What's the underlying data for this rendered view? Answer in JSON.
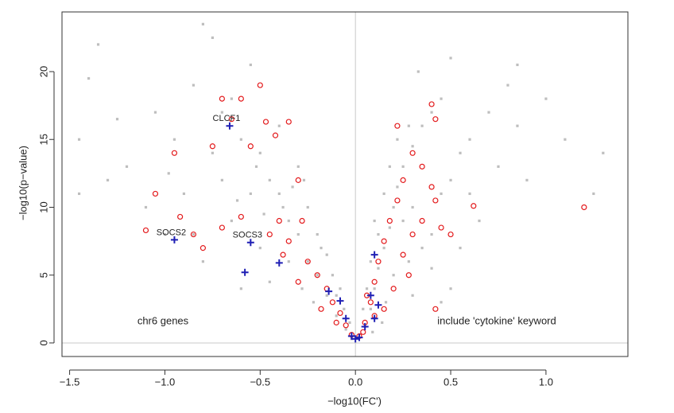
{
  "chart_data": {
    "type": "scatter",
    "x_label": "−log10(FC')",
    "y_label": "−log10(p−value)",
    "xlim": [
      -1.54,
      1.43
    ],
    "ylim": [
      -1,
      24.4
    ],
    "xticks": [
      {
        "value": -1.5,
        "label": "−1.5"
      },
      {
        "value": -1.0,
        "label": "−1.0"
      },
      {
        "value": -0.5,
        "label": "−0.5"
      },
      {
        "value": 0.0,
        "label": "0.0"
      },
      {
        "value": 0.5,
        "label": "0.5"
      },
      {
        "value": 1.0,
        "label": "1.0"
      }
    ],
    "yticks": [
      0,
      5,
      10,
      15,
      20
    ],
    "reference_lines": {
      "x": 0,
      "y": 0,
      "color": "#c8c8c8"
    },
    "annotations": [
      {
        "text": "chr6 genes",
        "color": "#e31a1c"
      },
      {
        "text": "include 'cytokine' keyword",
        "color": "#1f1fb4"
      }
    ],
    "series": [
      {
        "color": "#bebebe",
        "marker": "square",
        "x": [
          -1.45,
          -1.35,
          -1.4,
          -1.25,
          -1.45,
          -1.2,
          -1.05,
          -0.85,
          -0.8,
          -0.75,
          -0.55,
          -0.6,
          -0.65,
          -0.5,
          -0.45,
          -0.4,
          -0.35,
          -0.3,
          -0.25,
          -0.2,
          -0.15,
          -0.1,
          -0.05,
          -0.02,
          -0.7,
          -0.9,
          -1.0,
          -0.8,
          -0.6,
          -0.5,
          -0.3,
          -0.25,
          -0.2,
          -0.18,
          -0.12,
          -0.08,
          -0.35,
          -0.28,
          -0.15,
          -0.4,
          -0.55,
          -0.65,
          -0.75,
          -0.95,
          -1.1,
          -0.85,
          -0.45,
          -0.22,
          -0.1,
          -0.06,
          -0.03,
          -0.33,
          -0.27,
          -0.38,
          -0.48,
          -0.52,
          -0.7,
          -0.62,
          -1.3,
          -0.98,
          0.02,
          0.05,
          0.08,
          0.1,
          0.12,
          0.15,
          0.18,
          0.2,
          0.22,
          0.25,
          0.3,
          0.35,
          0.4,
          0.45,
          0.12,
          0.15,
          0.18,
          0.1,
          0.08,
          0.06,
          0.25,
          0.3,
          0.35,
          0.4,
          0.28,
          0.2,
          0.16,
          0.45,
          0.5,
          0.55,
          0.6,
          0.7,
          0.8,
          0.75,
          0.85,
          0.9,
          1.1,
          1.3,
          1.25,
          1.0,
          0.65,
          0.55,
          0.5,
          0.45,
          0.3,
          0.33,
          0.28,
          0.22,
          0.5,
          0.85,
          0.6,
          0.4,
          0.14,
          0.04,
          0.09
        ],
        "y": [
          11,
          22,
          19.5,
          16.5,
          15,
          13,
          17,
          19,
          23.5,
          22.5,
          20.5,
          15,
          18,
          14,
          12,
          11,
          9,
          8,
          6,
          5,
          3.5,
          2,
          1,
          0.3,
          12,
          11,
          8,
          6,
          4,
          7,
          13,
          10,
          8,
          7,
          5,
          4,
          6,
          4,
          6.5,
          16,
          11,
          9,
          14,
          15,
          10,
          8,
          4.5,
          3,
          3.5,
          2.5,
          1.5,
          11.5,
          12,
          10,
          9.5,
          13,
          17,
          10.5,
          12,
          12.5,
          0.4,
          1.2,
          2.5,
          4,
          5.5,
          7,
          8.5,
          10,
          11.5,
          13,
          14.5,
          16,
          17,
          18,
          8,
          11,
          13,
          9,
          6,
          4,
          9,
          10,
          7,
          8,
          6,
          5,
          3,
          11,
          12,
          14,
          15,
          17,
          19,
          13,
          16,
          12,
          15,
          14,
          11,
          18,
          9,
          7,
          4,
          3,
          3.5,
          20,
          16,
          15,
          21,
          20.5,
          11,
          5.5,
          1.5,
          2.5,
          0.8
        ]
      },
      {
        "color": "#e31a1c",
        "marker": "circle",
        "x": [
          -0.95,
          -1.05,
          -1.1,
          -0.92,
          -0.75,
          -0.7,
          -0.6,
          -0.5,
          -0.55,
          -0.47,
          -0.42,
          -0.35,
          -0.3,
          -0.4,
          -0.45,
          -0.35,
          -0.28,
          -0.25,
          -0.2,
          -0.15,
          -0.12,
          -0.08,
          -0.05,
          -0.02,
          -0.1,
          -0.18,
          -0.3,
          -0.38,
          -0.6,
          -0.7,
          -0.8,
          -0.85,
          -0.65,
          0.02,
          0.05,
          0.08,
          0.1,
          0.12,
          0.15,
          0.18,
          0.22,
          0.25,
          0.3,
          0.4,
          0.42,
          0.22,
          0.35,
          0.4,
          0.42,
          0.35,
          0.45,
          0.3,
          0.25,
          0.2,
          0.15,
          0.62,
          1.2,
          0.42,
          0.5,
          0.28,
          0.06,
          0.1,
          0.04
        ],
        "y": [
          14,
          11,
          8.3,
          9.3,
          14.5,
          18,
          18,
          19,
          14.5,
          16.3,
          15.3,
          16.3,
          12,
          9,
          8,
          7.5,
          9,
          6,
          5,
          4,
          3,
          2.2,
          1.3,
          0.6,
          1.5,
          2.5,
          4.5,
          6.5,
          9.3,
          8.5,
          7,
          8,
          16.5,
          0.5,
          1.5,
          3,
          4.5,
          6,
          7.5,
          9,
          10.5,
          12,
          14,
          17.6,
          16.5,
          16,
          13,
          11.5,
          10.5,
          9,
          8.5,
          8,
          6.5,
          4,
          2.5,
          10.1,
          10,
          2.5,
          8,
          5,
          3.5,
          2,
          0.8
        ]
      },
      {
        "color": "#1f1fb4",
        "marker": "plus",
        "x": [
          -0.66,
          -0.95,
          -0.55,
          -0.58,
          -0.4,
          -0.14,
          -0.08,
          -0.05,
          -0.02,
          0.0,
          0.1,
          0.08,
          0.1,
          0.12,
          0.05,
          0.02
        ],
        "y": [
          16,
          7.6,
          7.4,
          5.2,
          5.9,
          3.8,
          3.1,
          1.8,
          0.5,
          0.3,
          6.5,
          3.5,
          1.8,
          2.8,
          1.2,
          0.4
        ],
        "labels": [
          "CLCF1",
          "SOCS2",
          "SOCS3",
          null,
          null,
          null,
          null,
          null,
          null,
          null,
          null,
          null,
          null,
          null,
          null,
          null
        ]
      }
    ]
  }
}
